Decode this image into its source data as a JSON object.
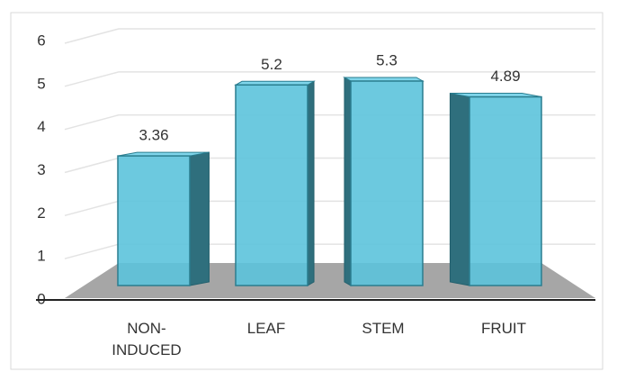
{
  "chart_data": {
    "type": "bar3d",
    "categories": [
      "NON-INDUCED",
      "LEAF",
      "STEM",
      "FRUIT"
    ],
    "values": [
      3.36,
      5.2,
      5.3,
      4.89
    ],
    "color": "#5cc3dc",
    "ylim": [
      0,
      6
    ],
    "yticks": [
      0,
      1,
      2,
      3,
      4,
      5,
      6
    ],
    "grid": true
  }
}
